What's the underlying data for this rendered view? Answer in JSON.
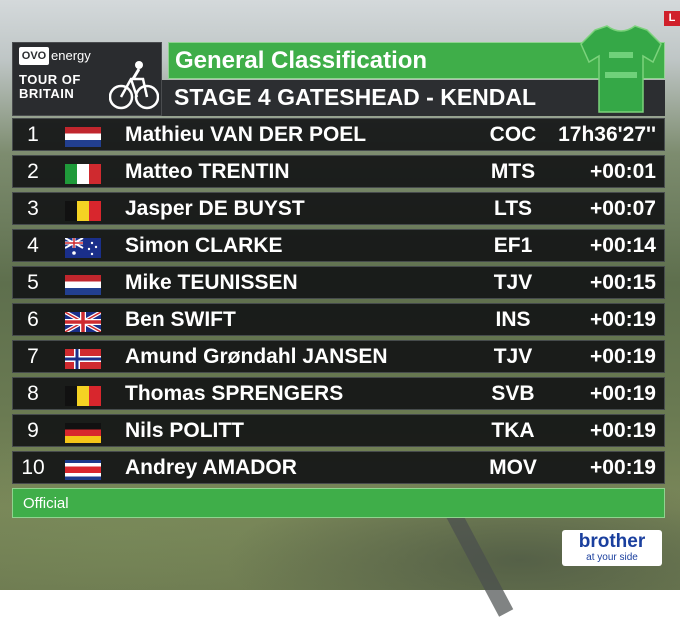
{
  "badge_live": "L",
  "logo": {
    "sponsor": "energy",
    "line1": "TOUR OF",
    "line2": "BRITAIN"
  },
  "header": {
    "title": "General Classification",
    "stage": "STAGE 4  GATESHEAD - KENDAL"
  },
  "jersey_icon": "green-jersey-icon",
  "colors": {
    "green": "#3fae49",
    "panel": "#2c2e31",
    "row": "#141516"
  },
  "rows": [
    {
      "pos": "1",
      "flag": "netherlands",
      "name": "Mathieu VAN DER POEL",
      "team": "COC",
      "time": "17h36'27''"
    },
    {
      "pos": "2",
      "flag": "italy",
      "name": "Matteo TRENTIN",
      "team": "MTS",
      "time": "+00:01"
    },
    {
      "pos": "3",
      "flag": "belgium",
      "name": "Jasper DE BUYST",
      "team": "LTS",
      "time": "+00:07"
    },
    {
      "pos": "4",
      "flag": "australia",
      "name": "Simon CLARKE",
      "team": "EF1",
      "time": "+00:14"
    },
    {
      "pos": "5",
      "flag": "netherlands",
      "name": "Mike TEUNISSEN",
      "team": "TJV",
      "time": "+00:15"
    },
    {
      "pos": "6",
      "flag": "united-kingdom",
      "name": "Ben SWIFT",
      "team": "INS",
      "time": "+00:19"
    },
    {
      "pos": "7",
      "flag": "norway",
      "name": "Amund Grøndahl JANSEN",
      "team": "TJV",
      "time": "+00:19"
    },
    {
      "pos": "8",
      "flag": "belgium",
      "name": "Thomas SPRENGERS",
      "team": "SVB",
      "time": "+00:19"
    },
    {
      "pos": "9",
      "flag": "germany",
      "name": "Nils POLITT",
      "team": "TKA",
      "time": "+00:19"
    },
    {
      "pos": "10",
      "flag": "costa-rica",
      "name": "Andrey AMADOR",
      "team": "MOV",
      "time": "+00:19"
    }
  ],
  "footer": {
    "status": "Official"
  },
  "sponsor": {
    "name": "brother",
    "tagline": "at your side"
  }
}
